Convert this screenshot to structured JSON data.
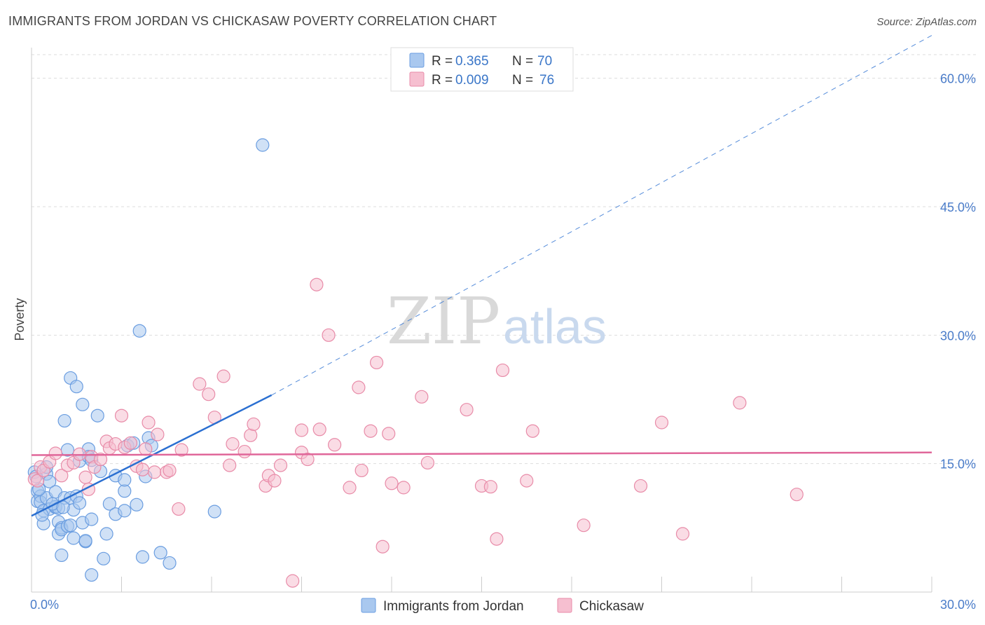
{
  "title": "IMMIGRANTS FROM JORDAN VS CHICKASAW POVERTY CORRELATION CHART",
  "source": "Source: ZipAtlas.com",
  "watermark": {
    "zip": "ZIP",
    "atlas": "atlas"
  },
  "colors": {
    "blue_fill": "#a9c8ef",
    "blue_stroke": "#6a9de0",
    "blue_line": "#2a6fd1",
    "pink_fill": "#f6bfd0",
    "pink_stroke": "#e88ba8",
    "pink_line": "#e0679a",
    "tick_text": "#4a7cc9",
    "grid": "#dddddd"
  },
  "legend": {
    "rows": [
      {
        "r_label": "R =",
        "r_value": "0.365",
        "n_label": "N =",
        "n_value": "70"
      },
      {
        "r_label": "R =",
        "r_value": "0.009",
        "n_label": "N =",
        "n_value": "76"
      }
    ]
  },
  "chart_data": {
    "type": "scatter",
    "title": "IMMIGRANTS FROM JORDAN VS CHICKASAW POVERTY CORRELATION CHART",
    "xlabel": "",
    "ylabel": "Poverty",
    "xlim": [
      0,
      30
    ],
    "ylim": [
      0,
      63
    ],
    "x_tick_labels": [
      "0.0%",
      "30.0%"
    ],
    "y_ticks": [
      15,
      30,
      45,
      60
    ],
    "y_tick_labels": [
      "15.0%",
      "30.0%",
      "45.0%",
      "60.0%"
    ],
    "grid": true,
    "legend_position": "top-center",
    "series": [
      {
        "name": "Immigrants from Jordan",
        "color": "#a9c8ef",
        "points": [
          [
            0.1,
            14.0
          ],
          [
            0.2,
            11.8
          ],
          [
            0.2,
            10.6
          ],
          [
            0.3,
            11.2
          ],
          [
            0.3,
            10.5
          ],
          [
            0.4,
            9.5
          ],
          [
            0.4,
            8.0
          ],
          [
            0.5,
            13.8
          ],
          [
            0.5,
            11.0
          ],
          [
            0.5,
            14.6
          ],
          [
            0.6,
            12.9
          ],
          [
            0.6,
            9.7
          ],
          [
            0.8,
            9.9
          ],
          [
            0.8,
            10.0
          ],
          [
            0.8,
            11.7
          ],
          [
            0.9,
            8.2
          ],
          [
            0.9,
            6.8
          ],
          [
            0.9,
            9.8
          ],
          [
            1.0,
            4.3
          ],
          [
            1.0,
            7.5
          ],
          [
            1.0,
            7.3
          ],
          [
            1.1,
            11.0
          ],
          [
            1.1,
            20.0
          ],
          [
            1.2,
            16.6
          ],
          [
            1.2,
            7.7
          ],
          [
            1.3,
            25.0
          ],
          [
            1.3,
            7.8
          ],
          [
            1.3,
            11.0
          ],
          [
            1.4,
            9.6
          ],
          [
            1.4,
            6.3
          ],
          [
            1.5,
            11.2
          ],
          [
            1.5,
            24.0
          ],
          [
            1.6,
            15.3
          ],
          [
            1.6,
            10.4
          ],
          [
            1.7,
            21.9
          ],
          [
            1.7,
            8.1
          ],
          [
            1.8,
            5.9
          ],
          [
            1.8,
            6.0
          ],
          [
            1.9,
            16.7
          ],
          [
            1.9,
            15.8
          ],
          [
            2.0,
            2.0
          ],
          [
            2.0,
            8.5
          ],
          [
            2.0,
            15.4
          ],
          [
            2.2,
            20.6
          ],
          [
            2.4,
            3.9
          ],
          [
            2.5,
            6.8
          ],
          [
            2.6,
            10.3
          ],
          [
            2.8,
            13.6
          ],
          [
            2.8,
            9.1
          ],
          [
            3.1,
            9.5
          ],
          [
            3.1,
            11.8
          ],
          [
            3.1,
            13.1
          ],
          [
            3.2,
            17.1
          ],
          [
            3.5,
            10.2
          ],
          [
            3.6,
            30.5
          ],
          [
            3.7,
            4.1
          ],
          [
            3.8,
            13.5
          ],
          [
            3.9,
            18.0
          ],
          [
            4.0,
            17.1
          ],
          [
            4.3,
            4.6
          ],
          [
            4.6,
            3.4
          ],
          [
            6.1,
            9.4
          ],
          [
            7.7,
            52.2
          ],
          [
            0.15,
            13.5
          ],
          [
            0.25,
            12.0
          ],
          [
            0.35,
            9.0
          ],
          [
            0.7,
            10.3
          ],
          [
            1.05,
            9.9
          ],
          [
            2.3,
            14.1
          ],
          [
            3.4,
            17.4
          ]
        ]
      },
      {
        "name": "Chickasaw",
        "color": "#f6bfd0",
        "points": [
          [
            0.1,
            13.2
          ],
          [
            0.2,
            13.0
          ],
          [
            0.3,
            14.6
          ],
          [
            0.4,
            14.2
          ],
          [
            0.6,
            15.2
          ],
          [
            0.8,
            16.2
          ],
          [
            1.0,
            13.6
          ],
          [
            1.2,
            14.8
          ],
          [
            1.4,
            15.1
          ],
          [
            1.6,
            16.1
          ],
          [
            1.8,
            13.4
          ],
          [
            1.9,
            12.0
          ],
          [
            2.0,
            15.8
          ],
          [
            2.1,
            14.6
          ],
          [
            2.3,
            15.5
          ],
          [
            2.5,
            17.6
          ],
          [
            2.6,
            16.8
          ],
          [
            2.8,
            17.3
          ],
          [
            3.0,
            20.6
          ],
          [
            3.1,
            16.9
          ],
          [
            3.3,
            17.4
          ],
          [
            3.5,
            14.7
          ],
          [
            3.7,
            14.3
          ],
          [
            3.8,
            16.7
          ],
          [
            3.9,
            19.8
          ],
          [
            4.1,
            14.0
          ],
          [
            4.2,
            18.4
          ],
          [
            4.5,
            14.0
          ],
          [
            4.6,
            14.2
          ],
          [
            4.9,
            9.7
          ],
          [
            5.0,
            16.6
          ],
          [
            5.6,
            24.3
          ],
          [
            5.9,
            23.1
          ],
          [
            6.1,
            20.4
          ],
          [
            6.4,
            25.2
          ],
          [
            6.6,
            14.8
          ],
          [
            6.7,
            17.3
          ],
          [
            7.1,
            16.4
          ],
          [
            7.3,
            18.3
          ],
          [
            7.4,
            19.6
          ],
          [
            7.8,
            12.4
          ],
          [
            7.9,
            13.6
          ],
          [
            8.1,
            13.0
          ],
          [
            8.3,
            14.8
          ],
          [
            8.7,
            1.3
          ],
          [
            9.0,
            18.9
          ],
          [
            9.0,
            16.3
          ],
          [
            9.2,
            15.5
          ],
          [
            9.5,
            35.9
          ],
          [
            9.6,
            19.0
          ],
          [
            9.9,
            30.0
          ],
          [
            10.1,
            17.2
          ],
          [
            10.6,
            12.2
          ],
          [
            10.9,
            23.9
          ],
          [
            11.0,
            14.2
          ],
          [
            11.3,
            18.8
          ],
          [
            11.5,
            26.8
          ],
          [
            11.7,
            5.3
          ],
          [
            11.9,
            18.5
          ],
          [
            12.0,
            12.7
          ],
          [
            12.4,
            12.2
          ],
          [
            13.0,
            22.8
          ],
          [
            13.2,
            15.1
          ],
          [
            14.5,
            21.3
          ],
          [
            15.0,
            12.4
          ],
          [
            15.3,
            12.3
          ],
          [
            15.5,
            6.2
          ],
          [
            15.7,
            25.9
          ],
          [
            16.5,
            13.0
          ],
          [
            16.7,
            18.8
          ],
          [
            18.4,
            7.8
          ],
          [
            20.3,
            12.4
          ],
          [
            21.0,
            19.8
          ],
          [
            21.7,
            6.8
          ],
          [
            23.6,
            22.1
          ],
          [
            25.5,
            11.4
          ]
        ]
      }
    ],
    "trend_lines": [
      {
        "series": "Immigrants from Jordan",
        "x": [
          0.0,
          8.0
        ],
        "y": [
          8.9,
          23.0
        ],
        "extended_x": [
          8.0,
          30.0
        ],
        "extended_y": [
          23.0,
          65.0
        ]
      },
      {
        "series": "Chickasaw",
        "x": [
          0.0,
          30.0
        ],
        "y": [
          16.0,
          16.3
        ]
      }
    ]
  }
}
